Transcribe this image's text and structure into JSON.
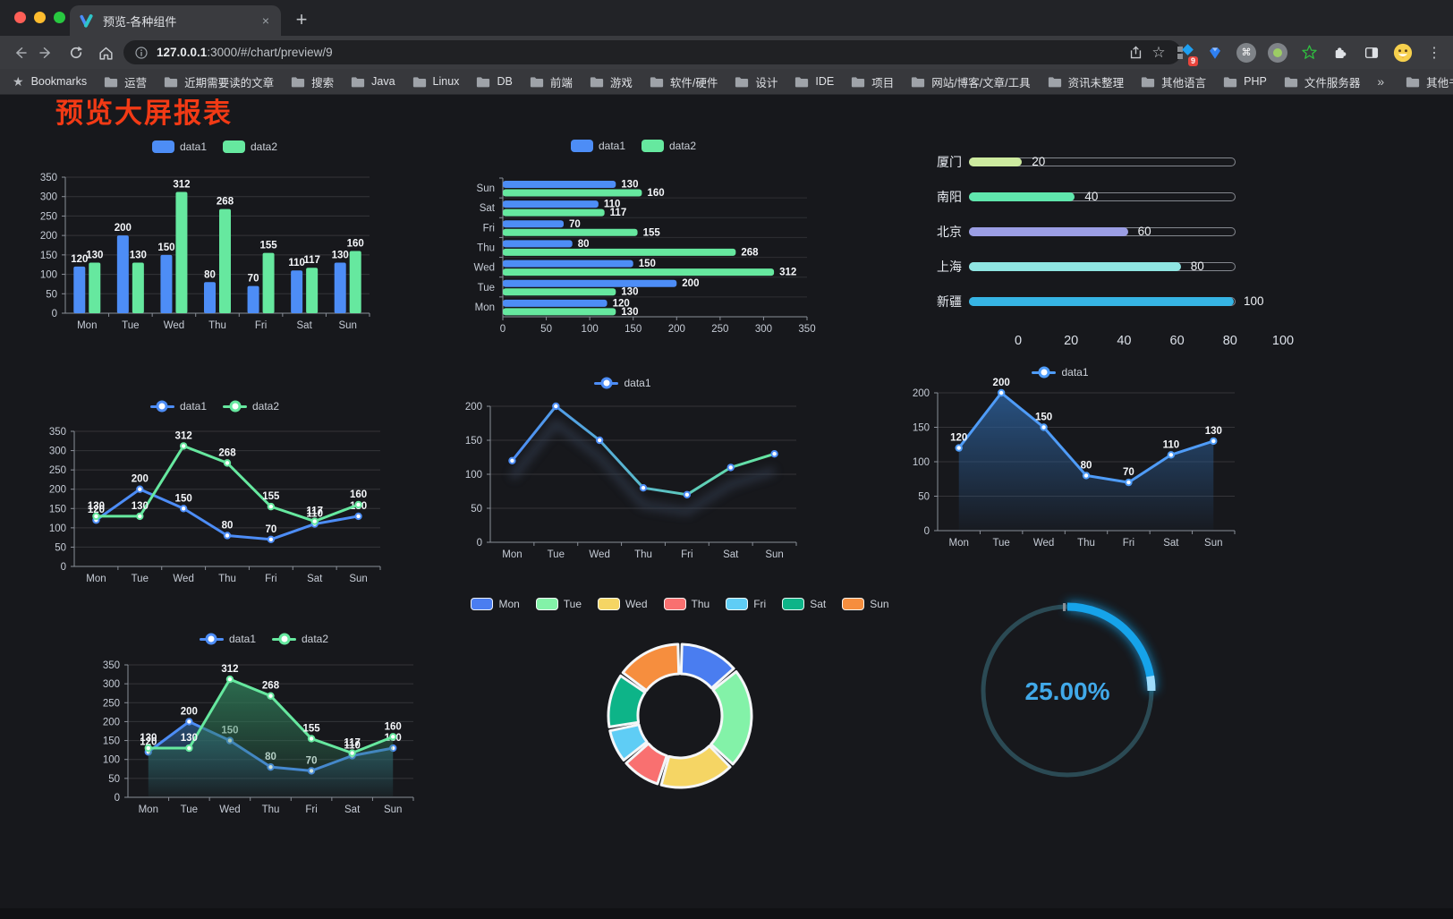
{
  "browser": {
    "tab": {
      "title": "预览-各种组件",
      "close_glyph": "×",
      "new_tab_glyph": "+"
    },
    "url": {
      "host": "127.0.0.1",
      "rest": ":3000/#/chart/preview/9"
    },
    "extensions": {
      "badge": "9",
      "menu_glyph": "⋮",
      "star_glyph": "☆",
      "cmd_glyph": "⌘"
    },
    "bookmarks": {
      "label": "Bookmarks",
      "items": [
        "运营",
        "近期需要读的文章",
        "搜索",
        "Java",
        "Linux",
        "DB",
        "前端",
        "游戏",
        "软件/硬件",
        "设计",
        "IDE",
        "项目",
        "网站/博客/文章/工具",
        "资讯未整理",
        "其他语言",
        "PHP",
        "文件服务器"
      ],
      "overflow": "»",
      "other": "其他书签"
    }
  },
  "page": {
    "title": "预览大屏报表",
    "title_color": "#f23a15"
  },
  "colors": {
    "series_blue": "#4d8df6",
    "series_green": "#66e89f",
    "axis_text": "#c6ccd6",
    "value_label": "#f5f7fa",
    "grid_line": "rgba(255,255,255,0.13)",
    "axis_line": "#8a8f98"
  },
  "chart_data": [
    {
      "id": "grouped-bar",
      "type": "bar",
      "categories": [
        "Mon",
        "Tue",
        "Wed",
        "Thu",
        "Fri",
        "Sat",
        "Sun"
      ],
      "series": [
        {
          "name": "data1",
          "color": "#4d8df6",
          "values": [
            120,
            200,
            150,
            80,
            70,
            110,
            130
          ]
        },
        {
          "name": "data2",
          "color": "#66e89f",
          "values": [
            130,
            130,
            312,
            268,
            155,
            117,
            160
          ]
        }
      ],
      "ylim": [
        0,
        350
      ],
      "ystep": 50,
      "grid": true,
      "legend_position": "top",
      "value_labels": true
    },
    {
      "id": "grouped-horizontal-bar",
      "type": "hbar",
      "categories": [
        "Mon",
        "Tue",
        "Wed",
        "Thu",
        "Fri",
        "Sat",
        "Sun"
      ],
      "display_order": "Sun-at-top",
      "series": [
        {
          "name": "data1",
          "color": "#4d8df6",
          "values": [
            120,
            200,
            150,
            80,
            70,
            110,
            130
          ]
        },
        {
          "name": "data2",
          "color": "#66e89f",
          "values": [
            130,
            130,
            312,
            268,
            155,
            117,
            160
          ]
        }
      ],
      "xlim": [
        0,
        350
      ],
      "xstep": 50,
      "legend_position": "top",
      "value_labels": true
    },
    {
      "id": "city-progress",
      "type": "progress",
      "items": [
        {
          "label": "厦门",
          "value": 20,
          "color": "#cdea9f"
        },
        {
          "label": "南阳",
          "value": 40,
          "color": "#5fe6ad"
        },
        {
          "label": "北京",
          "value": 60,
          "color": "#9b9ee4"
        },
        {
          "label": "上海",
          "value": 80,
          "color": "#8fe5e2"
        },
        {
          "label": "新疆",
          "value": 100,
          "color": "#36b4e4"
        }
      ],
      "xlim": [
        0,
        100
      ],
      "xticks": [
        0,
        20,
        40,
        60,
        80,
        100
      ]
    },
    {
      "id": "line-two-series",
      "type": "line",
      "categories": [
        "Mon",
        "Tue",
        "Wed",
        "Thu",
        "Fri",
        "Sat",
        "Sun"
      ],
      "series": [
        {
          "name": "data1",
          "color": "#4d8df6",
          "values": [
            120,
            200,
            150,
            80,
            70,
            110,
            130
          ]
        },
        {
          "name": "data2",
          "color": "#66e89f",
          "values": [
            130,
            130,
            312,
            268,
            155,
            117,
            160
          ]
        }
      ],
      "ylim": [
        0,
        350
      ],
      "ystep": 50,
      "legend_position": "top",
      "value_labels": true,
      "markers": true
    },
    {
      "id": "gradient-line",
      "type": "line",
      "categories": [
        "Mon",
        "Tue",
        "Wed",
        "Thu",
        "Fri",
        "Sat",
        "Sun"
      ],
      "series": [
        {
          "name": "data1",
          "color": "#4d8df6",
          "values": [
            120,
            200,
            150,
            80,
            70,
            110,
            130
          ]
        }
      ],
      "line_gradient": [
        "#4d8df6",
        "#66e89f"
      ],
      "shadow": true,
      "ylim": [
        0,
        200
      ],
      "ystep": 50,
      "legend_position": "top",
      "value_labels": false,
      "markers": true
    },
    {
      "id": "area-single",
      "type": "area",
      "categories": [
        "Mon",
        "Tue",
        "Wed",
        "Thu",
        "Fri",
        "Sat",
        "Sun"
      ],
      "series": [
        {
          "name": "data1",
          "color": "#4f9cf8",
          "values": [
            120,
            200,
            150,
            80,
            70,
            110,
            130
          ],
          "area_color": "#2b5c94"
        }
      ],
      "ylim": [
        0,
        200
      ],
      "ystep": 50,
      "legend_position": "top",
      "value_labels": true,
      "markers": true
    },
    {
      "id": "area-two-series",
      "type": "area",
      "categories": [
        "Mon",
        "Tue",
        "Wed",
        "Thu",
        "Fri",
        "Sat",
        "Sun"
      ],
      "series": [
        {
          "name": "data1",
          "color": "#4d8df6",
          "values": [
            120,
            200,
            150,
            80,
            70,
            110,
            130
          ],
          "area_color": "#2b5580"
        },
        {
          "name": "data2",
          "color": "#66e89f",
          "values": [
            130,
            130,
            312,
            268,
            155,
            117,
            160
          ],
          "area_color": "#2f7a57"
        }
      ],
      "ylim": [
        0,
        350
      ],
      "ystep": 50,
      "legend_position": "top",
      "value_labels": true,
      "markers": true
    },
    {
      "id": "donut",
      "type": "pie",
      "categories": [
        "Mon",
        "Tue",
        "Wed",
        "Thu",
        "Fri",
        "Sat",
        "Sun"
      ],
      "values": [
        120,
        200,
        150,
        80,
        70,
        110,
        130
      ],
      "colors": [
        "#4a7df0",
        "#83f2a8",
        "#f5d564",
        "#f97070",
        "#5fcdf5",
        "#0db488",
        "#f68e3e"
      ],
      "inner_radius_ratio": 0.59,
      "legend_position": "top"
    },
    {
      "id": "gauge",
      "type": "gauge",
      "value": 25,
      "display": "25.00%",
      "color": "#16a3ea",
      "track_color": "#2b4a54",
      "text_color": "#41a9e9"
    }
  ]
}
